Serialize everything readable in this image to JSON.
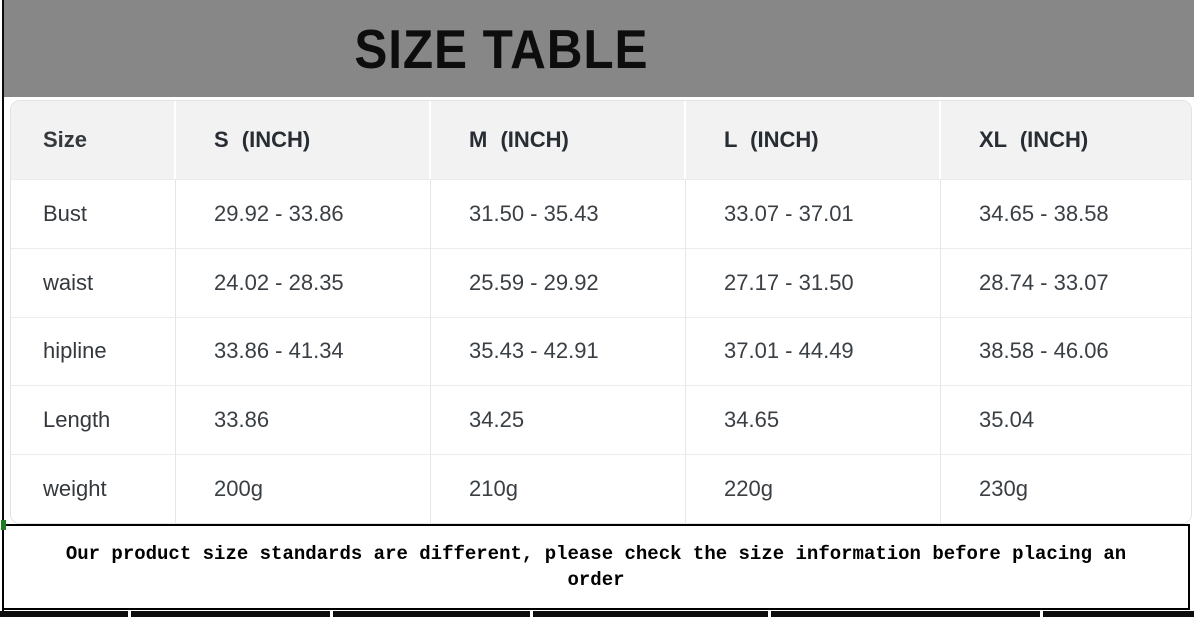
{
  "banner": {
    "title": "SIZE TABLE"
  },
  "table": {
    "columns": [
      "Size",
      "S (INCH)",
      "M (INCH)",
      "L (INCH)",
      "XL (INCH)"
    ],
    "rows": [
      {
        "label": "Bust",
        "values": [
          "29.92 - 33.86",
          "31.50 - 35.43",
          "33.07 - 37.01",
          "34.65 - 38.58"
        ]
      },
      {
        "label": "waist",
        "values": [
          "24.02 - 28.35",
          "25.59 - 29.92",
          "27.17 - 31.50",
          "28.74 - 33.07"
        ]
      },
      {
        "label": "hipline",
        "values": [
          "33.86 - 41.34",
          "35.43 - 42.91",
          "37.01 - 44.49",
          "38.58 - 46.06"
        ]
      },
      {
        "label": "Length",
        "values": [
          "33.86",
          "34.25",
          "34.65",
          "35.04"
        ]
      },
      {
        "label": "weight",
        "values": [
          "200g",
          "210g",
          "220g",
          "230g"
        ]
      }
    ]
  },
  "note": {
    "text": "Our product size standards are different, please check the size information before placing an order"
  },
  "colors": {
    "banner_gray": "#878787",
    "header_row_bg": "#f2f2f2",
    "cell_border": "#e6e6e6",
    "table_text": "#3a3f44",
    "note_border": "#000000",
    "corner_artifact_green": "#1f7d21"
  }
}
